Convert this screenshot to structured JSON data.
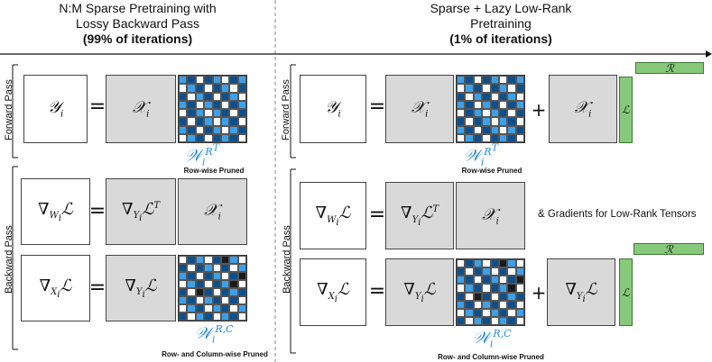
{
  "left_header": {
    "line1": "N:M Sparse Pretraining with",
    "line2": "Lossy Backward Pass",
    "line3": "(99% of iterations)"
  },
  "right_header": {
    "line1": "Sparse + Lazy Low-Rank",
    "line2": "Pretraining",
    "line3": "(1% of iterations)"
  },
  "side_labels": {
    "forward": "Forward Pass",
    "backward": "Backward Pass"
  },
  "symbols": {
    "Y": "𝒴",
    "X": "𝒳",
    "i": "i",
    "equals": "=",
    "plus": "+",
    "grad_w": "∇",
    "L": "ℒ",
    "R": "ℛ",
    "W": "𝒲",
    "T": "T",
    "RT": "R",
    "RC": "R,C",
    "Wi": "W",
    "Xi": "X",
    "Yi": "Y"
  },
  "captions": {
    "row_pruned": "Row-wise Pruned",
    "row_col_pruned": "Row- and Column-wise Pruned"
  },
  "note": "& Gradients for Low-Rank Tensors",
  "colors": {
    "light_blue": "#3da0e8",
    "dark_blue": "#0d4f8c",
    "black": "#1b1b1b",
    "white": "#ffffff",
    "low_rank_green": "#86c97a",
    "gray_box": "#d9d9d9",
    "w_label_blue": "#2b8cd8"
  },
  "matrices": {
    "forward_row_pruned": [
      [
        1,
        2,
        0,
        2,
        1,
        0,
        2,
        1
      ],
      [
        0,
        1,
        2,
        0,
        2,
        1,
        0,
        2
      ],
      [
        2,
        0,
        1,
        2,
        0,
        2,
        1,
        0
      ],
      [
        1,
        2,
        0,
        1,
        2,
        0,
        2,
        1
      ],
      [
        0,
        2,
        1,
        0,
        1,
        2,
        0,
        2
      ],
      [
        2,
        0,
        2,
        1,
        0,
        1,
        2,
        0
      ],
      [
        1,
        2,
        0,
        2,
        1,
        0,
        1,
        2
      ],
      [
        0,
        1,
        2,
        0,
        2,
        1,
        2,
        0
      ]
    ],
    "backward_row_col_pruned": [
      [
        0,
        2,
        1,
        0,
        2,
        3,
        1,
        0
      ],
      [
        2,
        0,
        2,
        1,
        0,
        2,
        0,
        1
      ],
      [
        1,
        2,
        0,
        2,
        1,
        0,
        2,
        3
      ],
      [
        0,
        1,
        2,
        0,
        2,
        1,
        3,
        0
      ],
      [
        2,
        0,
        3,
        2,
        0,
        2,
        1,
        2
      ],
      [
        1,
        2,
        0,
        1,
        2,
        0,
        2,
        0
      ],
      [
        0,
        1,
        2,
        0,
        1,
        2,
        0,
        1
      ],
      [
        2,
        0,
        1,
        2,
        0,
        1,
        2,
        0
      ]
    ]
  }
}
